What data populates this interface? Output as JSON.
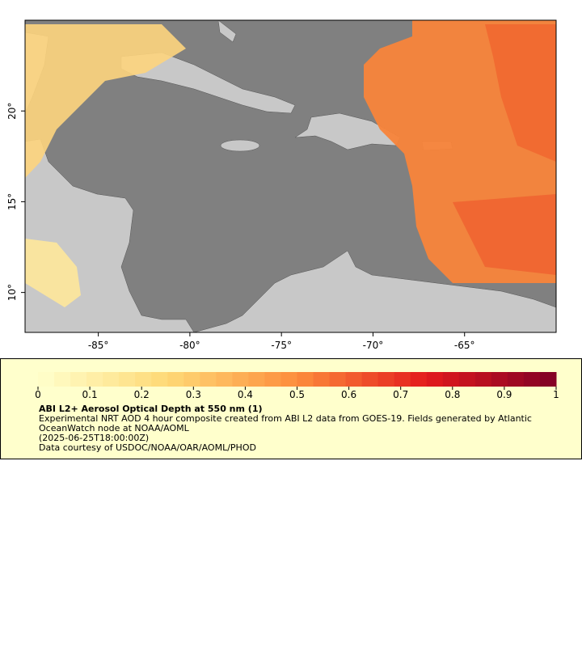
{
  "map": {
    "xlim": [
      -89,
      -60
    ],
    "ylim": [
      7.8,
      25
    ],
    "lon_ticks": [
      {
        "value": -85,
        "label": "-85°"
      },
      {
        "value": -80,
        "label": "-80°"
      },
      {
        "value": -75,
        "label": "-75°"
      },
      {
        "value": -70,
        "label": "-70°"
      },
      {
        "value": -65,
        "label": "-65°"
      }
    ],
    "lat_ticks": [
      {
        "value": 10,
        "label": "10°"
      },
      {
        "value": 15,
        "label": "15°"
      },
      {
        "value": 20,
        "label": "20°"
      }
    ]
  },
  "colorbar": {
    "lim": [
      0,
      1
    ],
    "ticks": [
      0,
      0.1,
      0.2,
      0.3,
      0.4,
      0.5,
      0.6,
      0.7,
      0.8,
      0.9,
      1
    ],
    "colors": [
      "#ffffcc",
      "#fed976",
      "#fd8d3c",
      "#e31a1c",
      "#800026"
    ],
    "title": "ABI L2+ Aerosol Optical Depth at 550 nm (1)",
    "description": "Experimental NRT AOD 4 hour composite created from ABI L2 data from GOES-19. Fields generated by Atlantic OceanWatch node at NOAA/AOML",
    "time": "(2025-06-25T18:00:00Z)",
    "credit": "Data courtesy of USDOC/NOAA/OAR/AOML/PHOD"
  }
}
